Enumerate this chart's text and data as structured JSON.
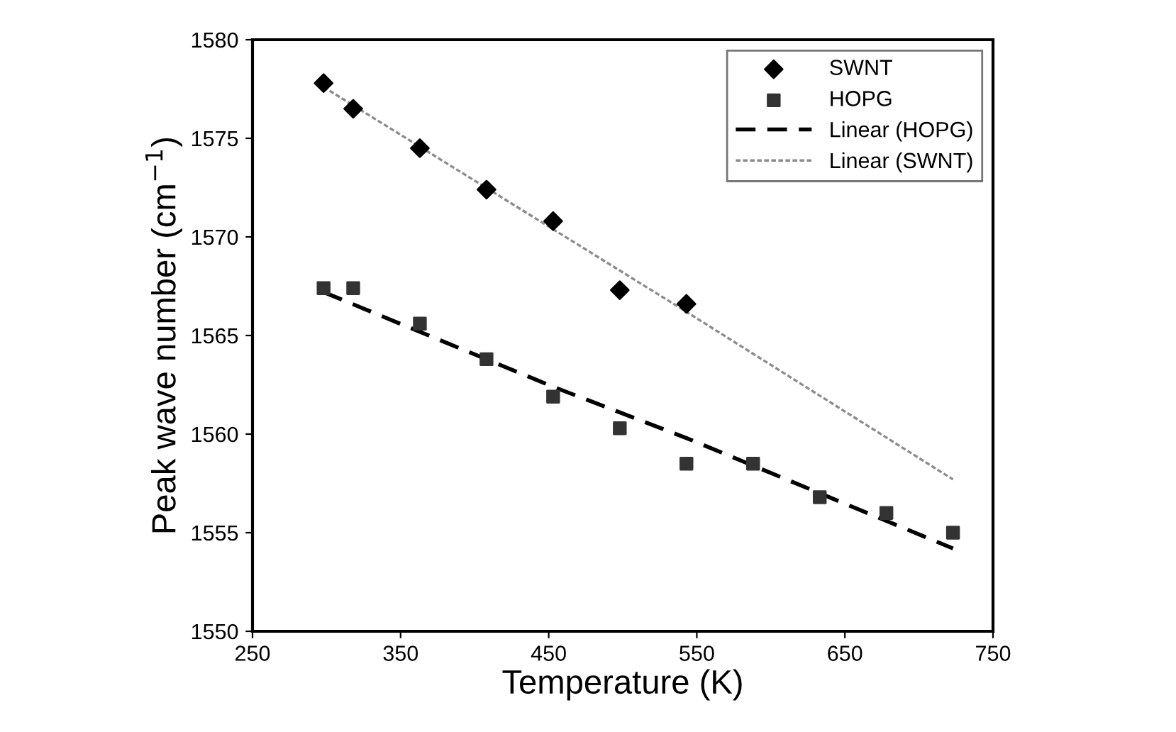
{
  "chart_data": {
    "type": "scatter",
    "xlabel": "Temperature (K)",
    "ylabel": "Peak wave number (cm$^{−1}$)",
    "xlim": [
      250,
      750
    ],
    "xticks": [
      250,
      350,
      450,
      550,
      650,
      750
    ],
    "ylim": [
      1550,
      1580
    ],
    "yticks": [
      1550,
      1555,
      1560,
      1565,
      1570,
      1575,
      1580
    ],
    "grid": false,
    "legend": "top right",
    "series": [
      {
        "name": "SWNT",
        "marker": "diamond",
        "color": "#000000",
        "x": [
          298,
          318,
          363,
          408,
          453,
          498,
          543
        ],
        "values": [
          1577.8,
          1576.5,
          1574.5,
          1572.4,
          1570.8,
          1567.3,
          1566.6
        ]
      },
      {
        "name": "HOPG",
        "marker": "square",
        "color": "#333333",
        "x": [
          298,
          318,
          363,
          408,
          453,
          498,
          543,
          588,
          633,
          678,
          723
        ],
        "values": [
          1567.4,
          1567.4,
          1565.6,
          1563.8,
          1561.9,
          1560.3,
          1558.5,
          1558.5,
          1556.8,
          1556.0,
          1555.0
        ]
      },
      {
        "name": "Linear (HOPG)",
        "type": "line",
        "line_style": "dashed",
        "color": "#000000",
        "x": [
          298,
          453,
          543,
          723
        ],
        "values": [
          1567.2,
          1562.4,
          1559.8,
          1554.2
        ]
      },
      {
        "name": "Linear (SWNT)",
        "type": "line",
        "line_style": "dotted",
        "color": "#8c8c8c",
        "x": [
          298,
          543,
          723
        ],
        "values": [
          1577.6,
          1566.2,
          1557.7
        ]
      }
    ]
  }
}
